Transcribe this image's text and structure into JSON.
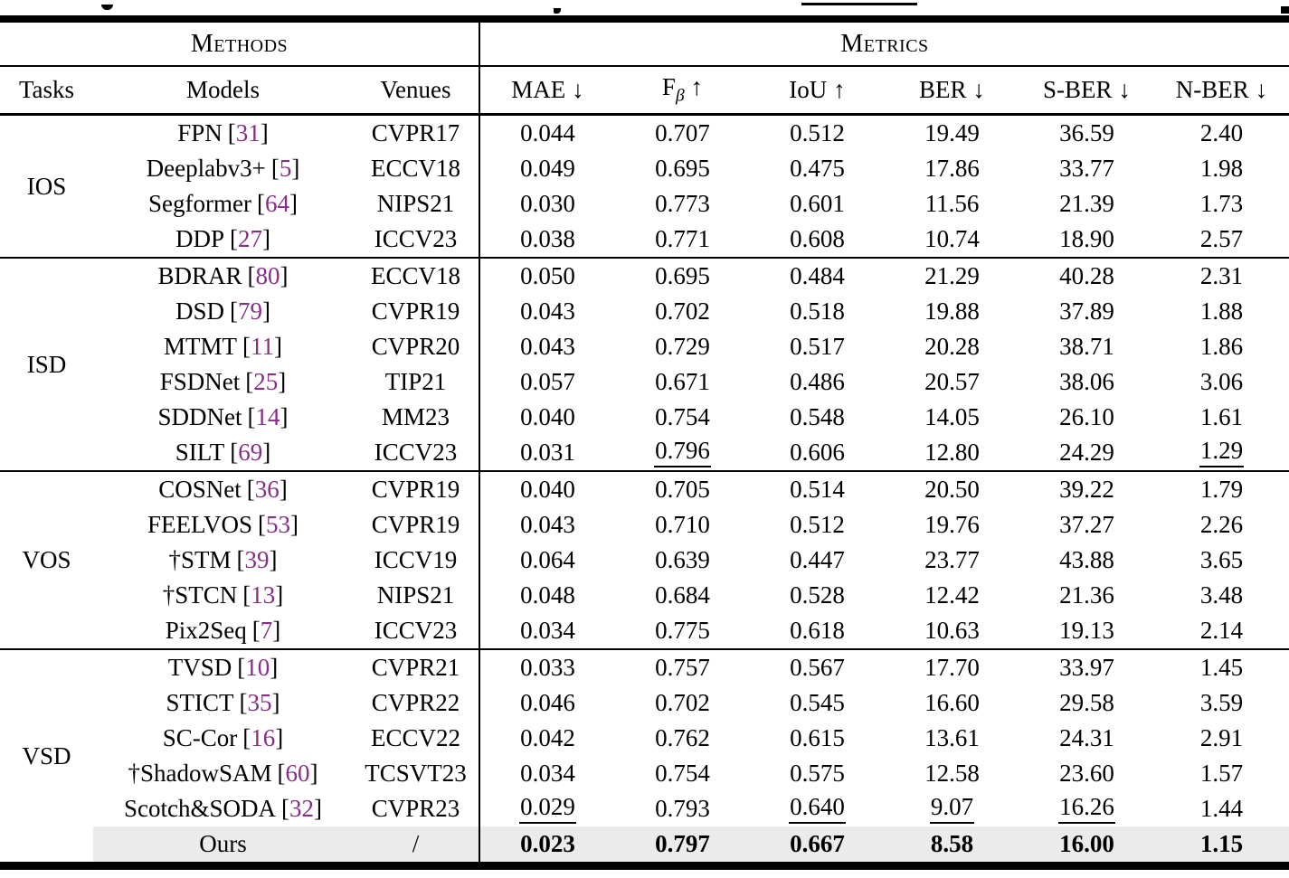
{
  "colors": {
    "citation": "#862d86",
    "highlight_row_bg": "#ebebeb",
    "rule": "#000000",
    "text": "#000000"
  },
  "citation_brackets": {
    "open": "[",
    "close": "]"
  },
  "header": {
    "group_methods": "Methods",
    "group_metrics": "Metrics",
    "columns_left": [
      "Tasks",
      "Models",
      "Venues"
    ],
    "metric_columns": [
      {
        "name": "MAE",
        "sub": "",
        "arrow": "↓"
      },
      {
        "name": "F",
        "sub": "β",
        "arrow": "↑"
      },
      {
        "name": "IoU",
        "sub": "",
        "arrow": "↑"
      },
      {
        "name": "BER",
        "sub": "",
        "arrow": "↓"
      },
      {
        "name": "S-BER",
        "sub": "",
        "arrow": "↓"
      },
      {
        "name": "N-BER",
        "sub": "",
        "arrow": "↓"
      }
    ]
  },
  "chart_data": {
    "type": "table",
    "title": "",
    "columns": [
      "Tasks",
      "Models",
      "Venues",
      "MAE ↓",
      "Fβ ↑",
      "IoU ↑",
      "BER ↓",
      "S-BER ↓",
      "N-BER ↓"
    ]
  },
  "groups": [
    {
      "task": "IOS",
      "rows": [
        {
          "model": "FPN",
          "cite": "31",
          "venue": "CVPR17",
          "values": [
            {
              "v": "0.044"
            },
            {
              "v": "0.707"
            },
            {
              "v": "0.512"
            },
            {
              "v": "19.49"
            },
            {
              "v": "36.59"
            },
            {
              "v": "2.40"
            }
          ]
        },
        {
          "model": "Deeplabv3+",
          "cite": "5",
          "venue": "ECCV18",
          "values": [
            {
              "v": "0.049"
            },
            {
              "v": "0.695"
            },
            {
              "v": "0.475"
            },
            {
              "v": "17.86"
            },
            {
              "v": "33.77"
            },
            {
              "v": "1.98"
            }
          ]
        },
        {
          "model": "Segformer",
          "cite": "64",
          "venue": "NIPS21",
          "values": [
            {
              "v": "0.030"
            },
            {
              "v": "0.773"
            },
            {
              "v": "0.601"
            },
            {
              "v": "11.56"
            },
            {
              "v": "21.39"
            },
            {
              "v": "1.73"
            }
          ]
        },
        {
          "model": "DDP",
          "cite": "27",
          "venue": "ICCV23",
          "values": [
            {
              "v": "0.038"
            },
            {
              "v": "0.771"
            },
            {
              "v": "0.608"
            },
            {
              "v": "10.74"
            },
            {
              "v": "18.90"
            },
            {
              "v": "2.57"
            }
          ]
        }
      ]
    },
    {
      "task": "ISD",
      "rows": [
        {
          "model": "BDRAR",
          "cite": "80",
          "venue": "ECCV18",
          "values": [
            {
              "v": "0.050"
            },
            {
              "v": "0.695"
            },
            {
              "v": "0.484"
            },
            {
              "v": "21.29"
            },
            {
              "v": "40.28"
            },
            {
              "v": "2.31"
            }
          ]
        },
        {
          "model": "DSD",
          "cite": "79",
          "venue": "CVPR19",
          "values": [
            {
              "v": "0.043"
            },
            {
              "v": "0.702"
            },
            {
              "v": "0.518"
            },
            {
              "v": "19.88"
            },
            {
              "v": "37.89"
            },
            {
              "v": "1.88"
            }
          ]
        },
        {
          "model": "MTMT",
          "cite": "11",
          "venue": "CVPR20",
          "values": [
            {
              "v": "0.043"
            },
            {
              "v": "0.729"
            },
            {
              "v": "0.517"
            },
            {
              "v": "20.28"
            },
            {
              "v": "38.71"
            },
            {
              "v": "1.86"
            }
          ]
        },
        {
          "model": "FSDNet",
          "cite": "25",
          "venue": "TIP21",
          "values": [
            {
              "v": "0.057"
            },
            {
              "v": "0.671"
            },
            {
              "v": "0.486"
            },
            {
              "v": "20.57"
            },
            {
              "v": "38.06"
            },
            {
              "v": "3.06"
            }
          ]
        },
        {
          "model": "SDDNet",
          "cite": "14",
          "venue": "MM23",
          "values": [
            {
              "v": "0.040"
            },
            {
              "v": "0.754"
            },
            {
              "v": "0.548"
            },
            {
              "v": "14.05"
            },
            {
              "v": "26.10"
            },
            {
              "v": "1.61"
            }
          ]
        },
        {
          "model": "SILT",
          "cite": "69",
          "venue": "ICCV23",
          "values": [
            {
              "v": "0.031"
            },
            {
              "v": "0.796",
              "u": true
            },
            {
              "v": "0.606"
            },
            {
              "v": "12.80"
            },
            {
              "v": "24.29"
            },
            {
              "v": "1.29",
              "u": true
            }
          ]
        }
      ]
    },
    {
      "task": "VOS",
      "rows": [
        {
          "model": "COSNet",
          "cite": "36",
          "venue": "CVPR19",
          "values": [
            {
              "v": "0.040"
            },
            {
              "v": "0.705"
            },
            {
              "v": "0.514"
            },
            {
              "v": "20.50"
            },
            {
              "v": "39.22"
            },
            {
              "v": "1.79"
            }
          ]
        },
        {
          "model": "FEELVOS",
          "cite": "53",
          "venue": "CVPR19",
          "values": [
            {
              "v": "0.043"
            },
            {
              "v": "0.710"
            },
            {
              "v": "0.512"
            },
            {
              "v": "19.76"
            },
            {
              "v": "37.27"
            },
            {
              "v": "2.26"
            }
          ]
        },
        {
          "model": "†STM",
          "cite": "39",
          "venue": "ICCV19",
          "values": [
            {
              "v": "0.064"
            },
            {
              "v": "0.639"
            },
            {
              "v": "0.447"
            },
            {
              "v": "23.77"
            },
            {
              "v": "43.88"
            },
            {
              "v": "3.65"
            }
          ]
        },
        {
          "model": "†STCN",
          "cite": "13",
          "venue": "NIPS21",
          "values": [
            {
              "v": "0.048"
            },
            {
              "v": "0.684"
            },
            {
              "v": "0.528"
            },
            {
              "v": "12.42"
            },
            {
              "v": "21.36"
            },
            {
              "v": "3.48"
            }
          ]
        },
        {
          "model": "Pix2Seq",
          "cite": "7",
          "venue": "ICCV23",
          "values": [
            {
              "v": "0.034"
            },
            {
              "v": "0.775"
            },
            {
              "v": "0.618"
            },
            {
              "v": "10.63"
            },
            {
              "v": "19.13"
            },
            {
              "v": "2.14"
            }
          ]
        }
      ]
    },
    {
      "task": "VSD",
      "rows": [
        {
          "model": "TVSD",
          "cite": "10",
          "venue": "CVPR21",
          "values": [
            {
              "v": "0.033"
            },
            {
              "v": "0.757"
            },
            {
              "v": "0.567"
            },
            {
              "v": "17.70"
            },
            {
              "v": "33.97"
            },
            {
              "v": "1.45"
            }
          ]
        },
        {
          "model": "STICT",
          "cite": "35",
          "venue": "CVPR22",
          "values": [
            {
              "v": "0.046"
            },
            {
              "v": "0.702"
            },
            {
              "v": "0.545"
            },
            {
              "v": "16.60"
            },
            {
              "v": "29.58"
            },
            {
              "v": "3.59"
            }
          ]
        },
        {
          "model": "SC-Cor",
          "cite": "16",
          "venue": "ECCV22",
          "values": [
            {
              "v": "0.042"
            },
            {
              "v": "0.762"
            },
            {
              "v": "0.615"
            },
            {
              "v": "13.61"
            },
            {
              "v": "24.31"
            },
            {
              "v": "2.91"
            }
          ]
        },
        {
          "model": "†ShadowSAM",
          "cite": "60",
          "venue": "TCSVT23",
          "values": [
            {
              "v": "0.034"
            },
            {
              "v": "0.754"
            },
            {
              "v": "0.575"
            },
            {
              "v": "12.58"
            },
            {
              "v": "23.60"
            },
            {
              "v": "1.57"
            }
          ]
        },
        {
          "model": "Scotch&SODA",
          "cite": "32",
          "venue": "CVPR23",
          "values": [
            {
              "v": "0.029",
              "u": true
            },
            {
              "v": "0.793"
            },
            {
              "v": "0.640",
              "u": true
            },
            {
              "v": "9.07",
              "u": true
            },
            {
              "v": "16.26",
              "u": true
            },
            {
              "v": "1.44"
            }
          ]
        },
        {
          "model": "Ours",
          "cite": "",
          "venue": "/",
          "highlight": true,
          "values": [
            {
              "v": "0.023",
              "b": true
            },
            {
              "v": "0.797",
              "b": true
            },
            {
              "v": "0.667",
              "b": true
            },
            {
              "v": "8.58",
              "b": true
            },
            {
              "v": "16.00",
              "b": true
            },
            {
              "v": "1.15",
              "b": true
            }
          ]
        }
      ]
    }
  ]
}
